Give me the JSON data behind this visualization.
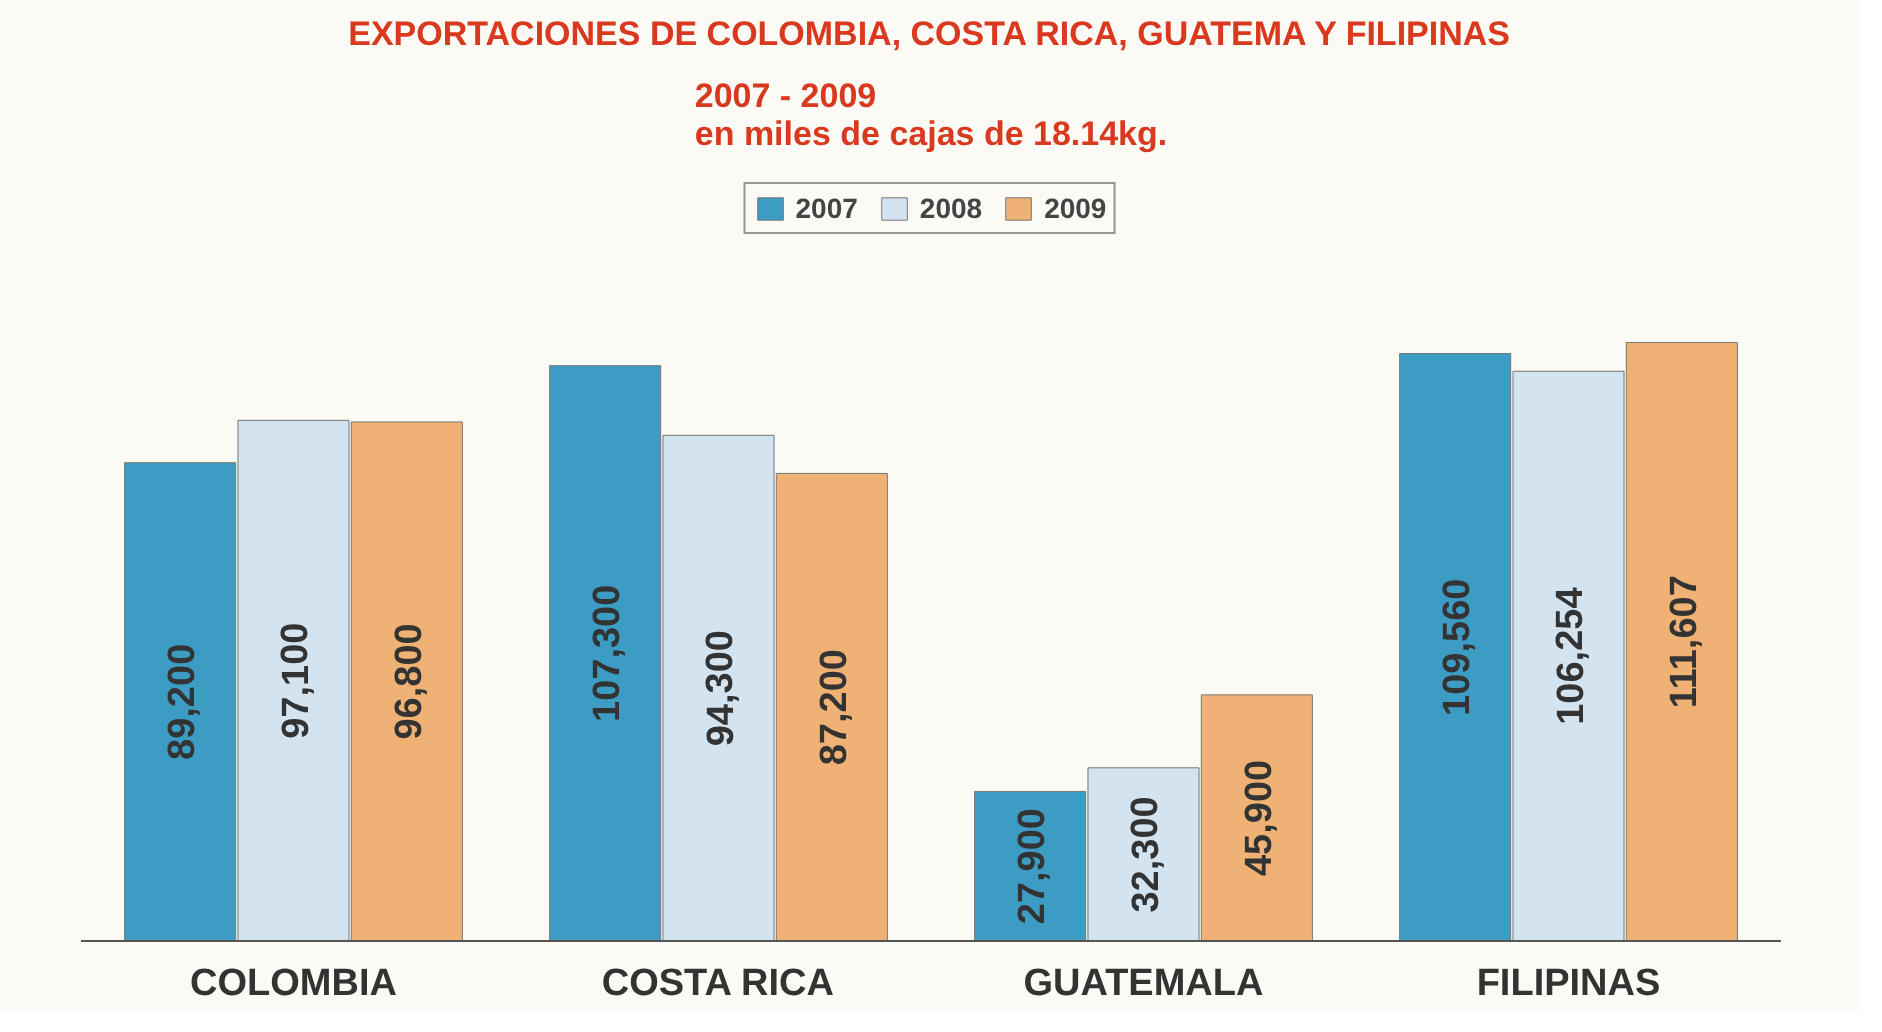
{
  "chart_data": {
    "type": "bar",
    "title": "EXPORTACIONES DE COLOMBIA, COSTA RICA, GUATEMA Y FILIPINAS",
    "subtitle": "2007 - 2009\nen miles de cajas de 18.14kg.",
    "categories": [
      "COLOMBIA",
      "COSTA RICA",
      "GUATEMALA",
      "FILIPINAS"
    ],
    "series": [
      {
        "name": "2007",
        "color": "#3d9cc4",
        "values": [
          89200,
          107300,
          27900,
          109560
        ],
        "value_labels": [
          "89,200",
          "107,300",
          "27,900",
          "109,560"
        ]
      },
      {
        "name": "2008",
        "color": "#d3e3ef",
        "values": [
          97100,
          94300,
          32300,
          106254
        ],
        "value_labels": [
          "97,100",
          "94,300",
          "32,300",
          "106,254"
        ]
      },
      {
        "name": "2009",
        "color": "#efb274",
        "values": [
          96800,
          87200,
          45900,
          111607
        ],
        "value_labels": [
          "96,800",
          "87,200",
          "45,900",
          "111,607"
        ]
      }
    ],
    "legend": "top",
    "grid": false
  }
}
